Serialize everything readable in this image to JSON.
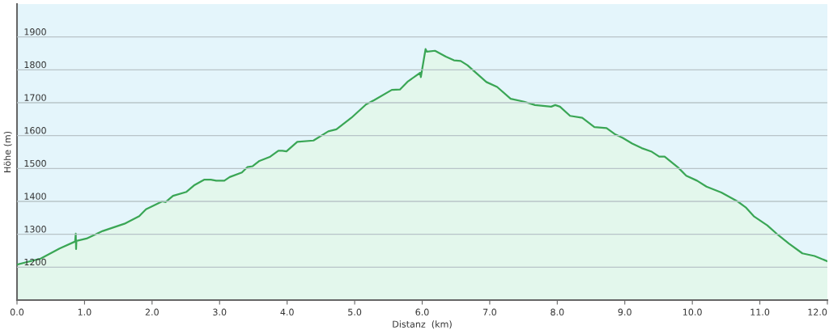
{
  "chart_data": {
    "type": "area",
    "xlabel": "Distanz  (km)",
    "ylabel": "Höhe (m)",
    "x": [
      0,
      0.35,
      0.63,
      0.86,
      0.87,
      0.875,
      0.88,
      1.03,
      1.27,
      1.59,
      1.81,
      1.91,
      2.15,
      2.2,
      2.31,
      2.51,
      2.63,
      2.77,
      2.87,
      2.95,
      3.07,
      3.15,
      3.33,
      3.41,
      3.49,
      3.59,
      3.75,
      3.87,
      3.93,
      3.99,
      4.15,
      4.39,
      4.61,
      4.73,
      4.95,
      5.17,
      5.29,
      5.55,
      5.67,
      5.79,
      5.97,
      5.98,
      6.03,
      6.05,
      6.07,
      6.19,
      6.35,
      6.47,
      6.57,
      6.67,
      6.95,
      7.11,
      7.31,
      7.51,
      7.67,
      7.91,
      7.97,
      8.04,
      8.19,
      8.37,
      8.55,
      8.73,
      8.85,
      8.97,
      9.11,
      9.25,
      9.39,
      9.51,
      9.59,
      9.79,
      9.91,
      10.07,
      10.21,
      10.43,
      10.67,
      10.79,
      10.91,
      11.11,
      11.27,
      11.43,
      11.63,
      11.81,
      12.0
    ],
    "series": [
      {
        "color": "#3aa655",
        "values": [
          1208,
          1226,
          1257,
          1278,
          1302,
          1255,
          1280,
          1287,
          1310,
          1332,
          1355,
          1376,
          1400,
          1398,
          1417,
          1429,
          1450,
          1466,
          1466,
          1463,
          1463,
          1474,
          1488,
          1504,
          1507,
          1523,
          1536,
          1554,
          1554,
          1552,
          1581,
          1585,
          1613,
          1619,
          1654,
          1695,
          1708,
          1739,
          1740,
          1765,
          1791,
          1778,
          1839,
          1863,
          1855,
          1858,
          1840,
          1829,
          1827,
          1814,
          1763,
          1748,
          1712,
          1703,
          1693,
          1688,
          1693,
          1688,
          1660,
          1654,
          1626,
          1623,
          1605,
          1593,
          1576,
          1562,
          1552,
          1536,
          1536,
          1503,
          1478,
          1463,
          1445,
          1427,
          1400,
          1382,
          1355,
          1327,
          1298,
          1272,
          1242,
          1234,
          1218
        ]
      }
    ],
    "xlim": [
      0,
      12.0
    ],
    "ylim": [
      1100,
      2000
    ],
    "xticks": [
      {
        "value": 0,
        "label": "0.0"
      },
      {
        "value": 1,
        "label": "1.0"
      },
      {
        "value": 2,
        "label": "2.0"
      },
      {
        "value": 3,
        "label": "3.0"
      },
      {
        "value": 4,
        "label": "4.0"
      },
      {
        "value": 5,
        "label": "5.0"
      },
      {
        "value": 6,
        "label": "6.0"
      },
      {
        "value": 7,
        "label": "7.0"
      },
      {
        "value": 8,
        "label": "8.0"
      },
      {
        "value": 9,
        "label": "9.0"
      },
      {
        "value": 10,
        "label": "10.0"
      },
      {
        "value": 11,
        "label": "11.0"
      },
      {
        "value": 12,
        "label": "12.0"
      }
    ],
    "yticks": [
      1200,
      1300,
      1400,
      1500,
      1600,
      1700,
      1800,
      1900
    ],
    "grid": "y"
  }
}
